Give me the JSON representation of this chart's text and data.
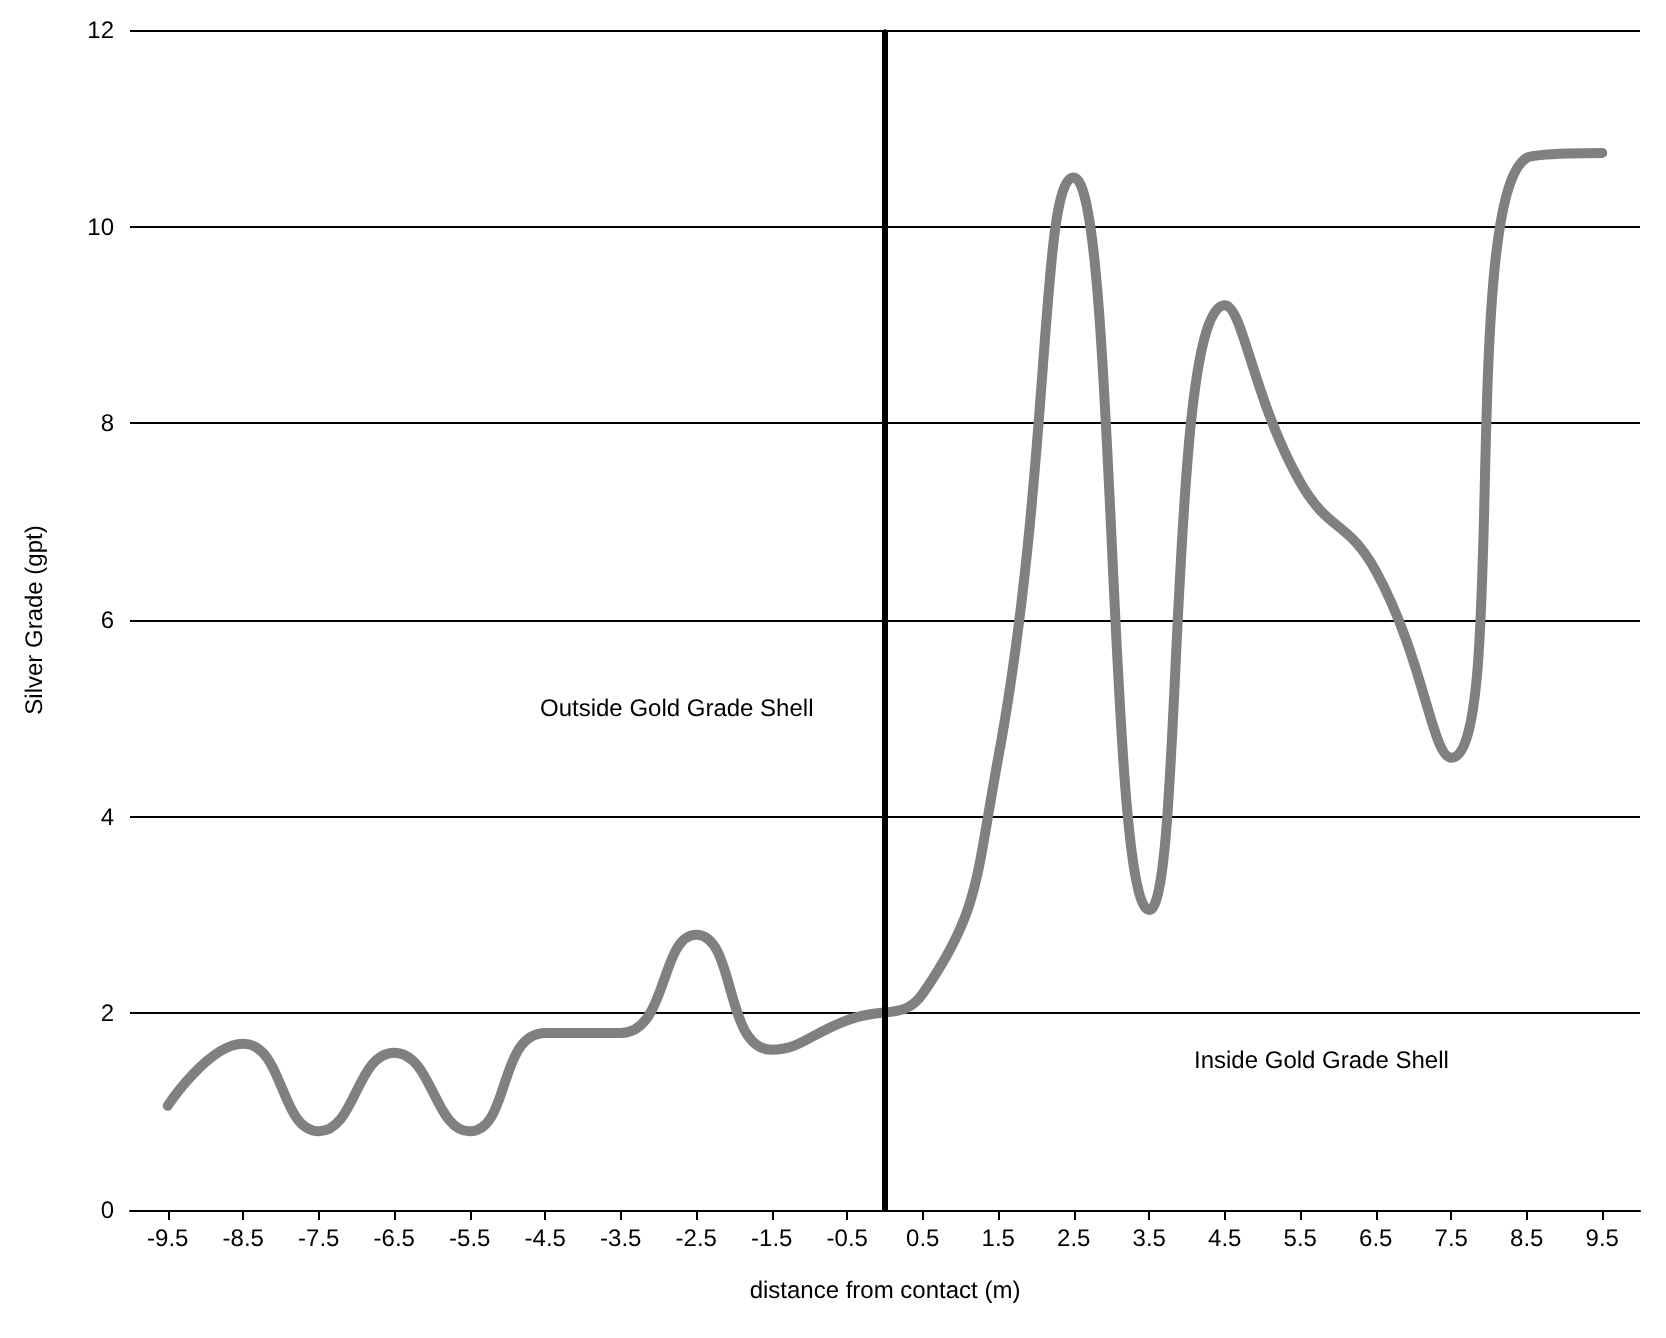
{
  "chart_data": {
    "type": "line",
    "xlabel": "distance from contact (m)",
    "ylabel": "Silver Grade (gpt)",
    "x": [
      -9.5,
      -8.5,
      -7.5,
      -6.5,
      -5.5,
      -4.5,
      -3.5,
      -2.5,
      -1.5,
      -0.5,
      0.5,
      1.5,
      2.5,
      3.5,
      4.5,
      5.5,
      6.5,
      7.5,
      8.5,
      9.5
    ],
    "series": [
      {
        "color": "#808080",
        "values": [
          1.06,
          1.69,
          0.8,
          1.6,
          0.8,
          1.8,
          1.8,
          2.8,
          1.63,
          1.93,
          2.2,
          4.6,
          10.5,
          3.05,
          9.2,
          7.4,
          6.5,
          4.6,
          10.7,
          10.75
        ]
      }
    ],
    "xlim": [
      -10,
      10
    ],
    "xticks": [
      -9.5,
      -8.5,
      -7.5,
      -6.5,
      -5.5,
      -4.5,
      -3.5,
      -2.5,
      -1.5,
      -0.5,
      0.5,
      1.5,
      2.5,
      3.5,
      4.5,
      5.5,
      6.5,
      7.5,
      8.5,
      9.5
    ],
    "ylim": [
      0,
      12
    ],
    "yticks": [
      0,
      2,
      4,
      6,
      8,
      10,
      12
    ],
    "grid": "y",
    "marker": "none",
    "line_style": "solid",
    "ref_lines": [
      {
        "axis": "x",
        "value": 0,
        "color": "#000000"
      }
    ],
    "annotations": [
      "Outside Gold Grade Shell",
      "Inside Gold Grade Shell"
    ]
  }
}
